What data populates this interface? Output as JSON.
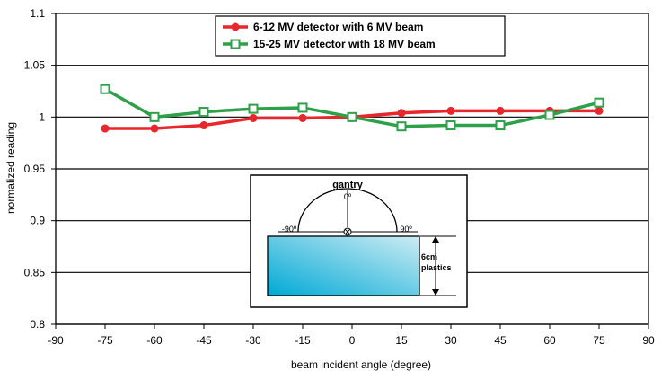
{
  "chart_data": {
    "type": "line",
    "title": "",
    "xlabel": "beam incident angle (degree)",
    "ylabel": "normalized reading",
    "xlim": [
      -90,
      90
    ],
    "ylim": [
      0.8,
      1.1
    ],
    "xticks": [
      -90,
      -75,
      -60,
      -45,
      -30,
      -15,
      0,
      15,
      30,
      45,
      60,
      75,
      90
    ],
    "yticks": [
      0.8,
      0.85,
      0.9,
      0.95,
      1,
      1.05,
      1.1
    ],
    "xtick_labels": [
      "-90",
      "-75",
      "-60",
      "-45",
      "-30",
      "-15",
      "0",
      "15",
      "30",
      "45",
      "60",
      "75",
      "90"
    ],
    "ytick_labels": [
      "0.8",
      "0.85",
      "0.9",
      "0.95",
      "1",
      "1.05",
      "1.1"
    ],
    "grid": "horizontal",
    "legend_position": "top-center",
    "series": [
      {
        "name": "6-12 MV detector with 6 MV beam",
        "color": "#e8262b",
        "marker": "filled-circle",
        "x": [
          -75,
          -60,
          -45,
          -30,
          -15,
          0,
          15,
          30,
          45,
          60,
          75
        ],
        "y": [
          0.989,
          0.989,
          0.992,
          0.999,
          0.999,
          1.0,
          1.004,
          1.006,
          1.006,
          1.006,
          1.006
        ]
      },
      {
        "name": "15-25 MV detector with 18 MV beam",
        "color": "#2ea04a",
        "marker": "open-square",
        "x": [
          -75,
          -60,
          -45,
          -30,
          -15,
          0,
          15,
          30,
          45,
          60,
          75
        ],
        "y": [
          1.027,
          1.0,
          1.005,
          1.008,
          1.009,
          1.0,
          0.991,
          0.992,
          0.992,
          1.002,
          1.014
        ]
      }
    ],
    "inset": {
      "title": "gantry",
      "angle_top": "0º",
      "angle_left": "-90º",
      "angle_right": "90º",
      "thickness_label_1": "6cm",
      "thickness_label_2": "plastics"
    }
  }
}
